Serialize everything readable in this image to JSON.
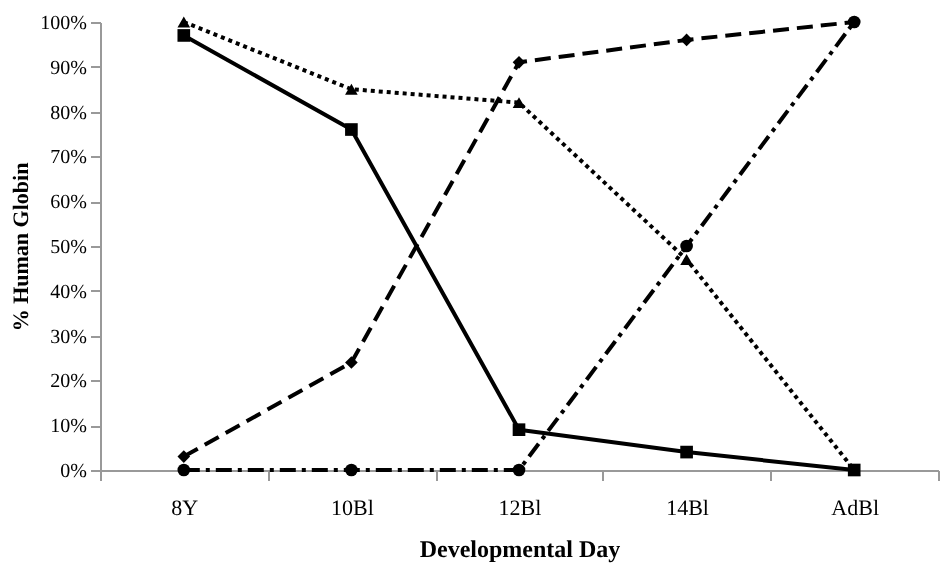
{
  "chart_data": {
    "type": "line",
    "xlabel": "Developmental Day",
    "ylabel": "% Human Globin",
    "categories": [
      "8Y",
      "10Bl",
      "12Bl",
      "14Bl",
      "AdBl"
    ],
    "series": [
      {
        "color": "#000000",
        "marker": "square",
        "line_style": "solid",
        "values": [
          97,
          76,
          9,
          4,
          0
        ]
      },
      {
        "color": "#000000",
        "marker": "diamond",
        "line_style": "dashed",
        "values": [
          3,
          24,
          91,
          96,
          100
        ]
      },
      {
        "color": "#000000",
        "marker": "triangle",
        "line_style": "dotted",
        "values": [
          100,
          85,
          82,
          47,
          0
        ]
      },
      {
        "color": "#000000",
        "marker": "circle",
        "line_style": "dashdot",
        "values": [
          0,
          0,
          0,
          50,
          100
        ]
      }
    ],
    "ylim": [
      0,
      100
    ],
    "yticks": [
      {
        "value": 0,
        "label": "0%"
      },
      {
        "value": 10,
        "label": "10%"
      },
      {
        "value": 20,
        "label": "20%"
      },
      {
        "value": 30,
        "label": "30%"
      },
      {
        "value": 40,
        "label": "40%"
      },
      {
        "value": 50,
        "label": "50%"
      },
      {
        "value": 60,
        "label": "60%"
      },
      {
        "value": 70,
        "label": "70%"
      },
      {
        "value": 80,
        "label": "80%"
      },
      {
        "value": 90,
        "label": "90%"
      },
      {
        "value": 100,
        "label": "100%"
      }
    ],
    "grid": false
  }
}
